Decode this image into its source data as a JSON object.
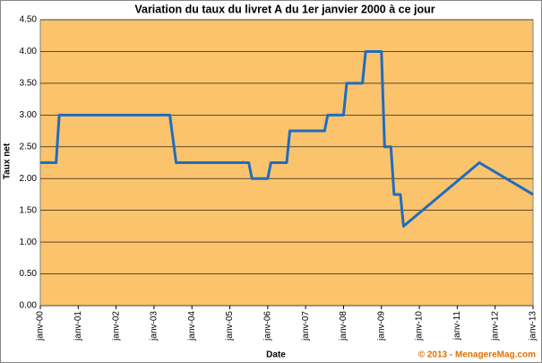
{
  "chart_data": {
    "type": "line",
    "title": "Variation du taux du livret A du 1er janvier 2000 à ce jour",
    "x_label": "Date",
    "y_label": "Taux net",
    "credit": "© 2013 - MenagereMag.com",
    "x": [
      "2000-01",
      "2000-06",
      "2000-07",
      "2003-06",
      "2003-08",
      "2005-07",
      "2005-08",
      "2006-01",
      "2006-02",
      "2006-07",
      "2006-08",
      "2007-07",
      "2007-08",
      "2008-01",
      "2008-02",
      "2008-07",
      "2008-08",
      "2009-01",
      "2009-02",
      "2009-04",
      "2009-05",
      "2009-07",
      "2009-08",
      "2011-08",
      "2013-01"
    ],
    "series": [
      {
        "color": "#1f6cc0",
        "values": [
          2.25,
          2.25,
          3.0,
          3.0,
          2.25,
          2.25,
          2.0,
          2.0,
          2.25,
          2.25,
          2.75,
          2.75,
          3.0,
          3.0,
          3.5,
          3.5,
          4.0,
          4.0,
          2.5,
          2.5,
          1.75,
          1.75,
          1.25,
          2.25,
          1.75
        ]
      }
    ],
    "xlim": [
      "2000-01",
      "2013-01"
    ],
    "xticks": [
      {
        "value": "2000-01",
        "label": "janv-00"
      },
      {
        "value": "2001-01",
        "label": "janv-01"
      },
      {
        "value": "2002-01",
        "label": "janv-02"
      },
      {
        "value": "2003-01",
        "label": "janv-03"
      },
      {
        "value": "2004-01",
        "label": "janv-04"
      },
      {
        "value": "2005-01",
        "label": "janv-05"
      },
      {
        "value": "2006-01",
        "label": "janv-06"
      },
      {
        "value": "2007-01",
        "label": "janv-07"
      },
      {
        "value": "2008-01",
        "label": "janv-08"
      },
      {
        "value": "2009-01",
        "label": "janv-09"
      },
      {
        "value": "2010-01",
        "label": "janv-10"
      },
      {
        "value": "2011-01",
        "label": "janv-11"
      },
      {
        "value": "2012-01",
        "label": "janv-12"
      },
      {
        "value": "2013-01",
        "label": "janv-13"
      }
    ],
    "ylim": [
      0,
      4.5
    ],
    "yticks": [
      {
        "value": 0,
        "label": "0.00"
      },
      {
        "value": 0.5,
        "label": "0.50"
      },
      {
        "value": 1,
        "label": "1.00"
      },
      {
        "value": 1.5,
        "label": "1.50"
      },
      {
        "value": 2,
        "label": "2.00"
      },
      {
        "value": 2.5,
        "label": "2.50"
      },
      {
        "value": 3,
        "label": "3.00"
      },
      {
        "value": 3.5,
        "label": "3.50"
      },
      {
        "value": 4,
        "label": "4.00"
      },
      {
        "value": 4.5,
        "label": "4.50"
      }
    ],
    "grid": true,
    "plot_color": "#fbc46c"
  }
}
